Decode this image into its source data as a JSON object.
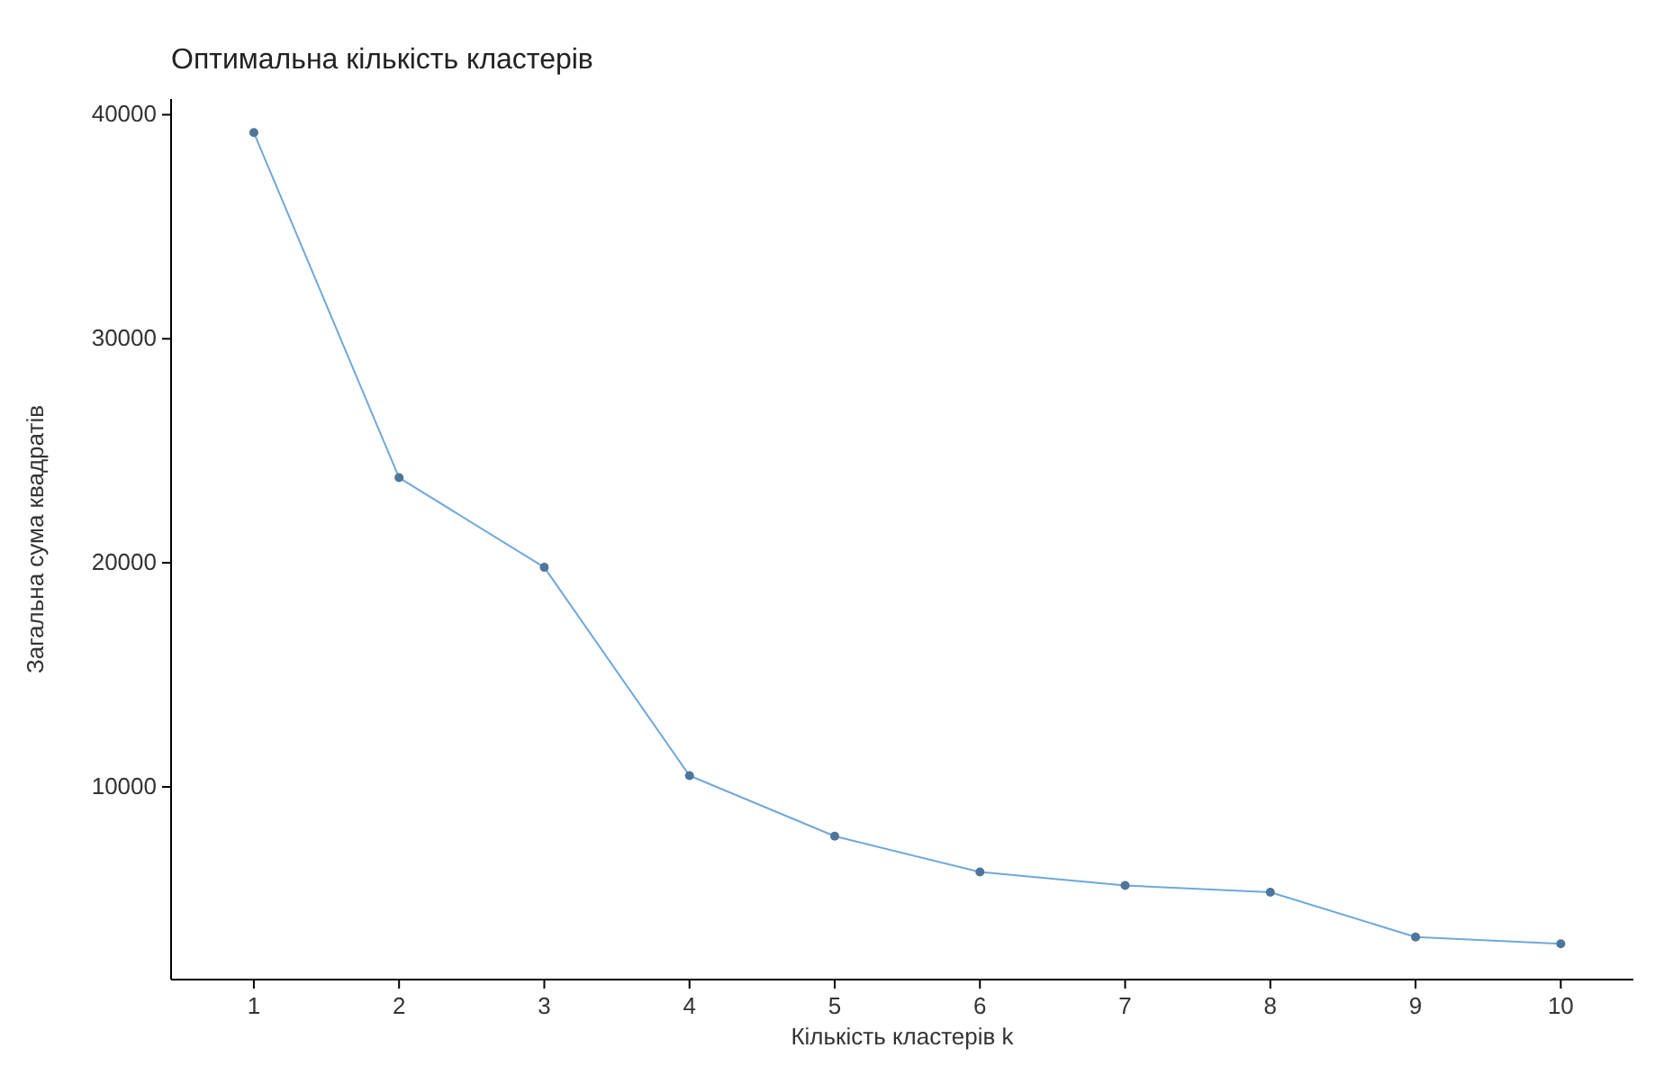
{
  "chart_data": {
    "type": "line",
    "title": "Оптимальна кількість кластерів",
    "xlabel": "Кількість кластерів k",
    "ylabel": "Загальна сума квадратів",
    "x": [
      1,
      2,
      3,
      4,
      5,
      6,
      7,
      8,
      9,
      10
    ],
    "series": [
      {
        "color": "#6fa8dc",
        "values": [
          39200,
          23800,
          19800,
          10500,
          7800,
          6200,
          5600,
          5300,
          3300,
          3000
        ]
      }
    ],
    "xlim": [
      0.43,
      10.5
    ],
    "xticks": [
      1,
      2,
      3,
      4,
      5,
      6,
      7,
      8,
      9,
      10
    ],
    "ylim": [
      1400,
      40700
    ],
    "yticks": [
      10000,
      20000,
      30000,
      40000
    ],
    "grid": false,
    "marker": "circle",
    "line_style": "solid"
  }
}
